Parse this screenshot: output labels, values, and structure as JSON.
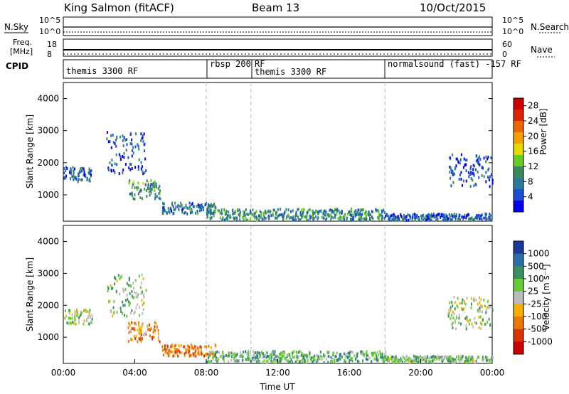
{
  "header": {
    "station": "King Salmon (fitACF)",
    "beam": "Beam 13",
    "date": "10/Oct/2015"
  },
  "noise_panel": {
    "left_label": "N.Sky",
    "right_label": "N.Search",
    "left_ticks": [
      "10^5",
      "10^0"
    ],
    "right_ticks": [
      "10^5",
      "10^0"
    ]
  },
  "freq_panel": {
    "left_label_1": "Freq.",
    "left_label_2": "[MHz]",
    "right_label": "Nave",
    "left_ticks": [
      "18",
      "8"
    ],
    "right_ticks": [
      "60",
      "0"
    ]
  },
  "cpid_panel": {
    "label": "CPID",
    "segments": [
      {
        "text": "themis 3300 RF",
        "start_hour": 0.0
      },
      {
        "text": "rbsp 200",
        "start_hour": 8.0
      },
      {
        "text": "RF",
        "start_hour": 10.5
      },
      {
        "text": "themis 3300 RF",
        "start_hour": 10.5
      },
      {
        "text": "normalsound (fast) -157 RF",
        "start_hour": 18.0
      }
    ]
  },
  "chart_data": [
    {
      "type": "heatmap",
      "title": "Power",
      "ylabel": "Slant Range [km]",
      "xlabel": "",
      "xlim": [
        0,
        24
      ],
      "ylim": [
        180,
        4500
      ],
      "yticks": [
        "1000",
        "2000",
        "3000",
        "4000"
      ],
      "colorbar": {
        "label": "Power [dB]",
        "ticks": [
          "4",
          "8",
          "12",
          "16",
          "20",
          "24",
          "28"
        ],
        "range": [
          0,
          30
        ],
        "colors": [
          "#0000ee",
          "#1a50d0",
          "#2a7a9a",
          "#3c8a5a",
          "#66cc22",
          "#e8d800",
          "#f3a000",
          "#ee6600",
          "#dd2200",
          "#cc0000"
        ]
      },
      "clusters": [
        {
          "hours": [
            0.0,
            1.6
          ],
          "range_km": [
            1450,
            1900
          ],
          "level": 0.2
        },
        {
          "hours": [
            2.4,
            4.6
          ],
          "range_km": [
            1700,
            3000
          ],
          "level": 0.15
        },
        {
          "hours": [
            3.6,
            5.4
          ],
          "range_km": [
            900,
            1500
          ],
          "level": 0.35
        },
        {
          "hours": [
            5.5,
            8.5
          ],
          "range_km": [
            450,
            800
          ],
          "level": 0.25
        },
        {
          "hours": [
            8.0,
            18.0
          ],
          "range_km": [
            250,
            600
          ],
          "level": 0.3
        },
        {
          "hours": [
            21.5,
            24.0
          ],
          "range_km": [
            1300,
            2300
          ],
          "level": 0.15
        },
        {
          "hours": [
            18.0,
            24.0
          ],
          "range_km": [
            250,
            450
          ],
          "level": 0.2
        }
      ]
    },
    {
      "type": "heatmap",
      "title": "Velocity",
      "ylabel": "Slant Range [km]",
      "xlabel": "Time UT",
      "xlim": [
        0,
        24
      ],
      "ylim": [
        180,
        4500
      ],
      "yticks": [
        "1000",
        "2000",
        "3000",
        "4000"
      ],
      "xticks": [
        "00:00",
        "04:00",
        "08:00",
        "12:00",
        "16:00",
        "20:00",
        "00:00"
      ],
      "colorbar": {
        "label": "Velocity [m s⁻¹]",
        "ticks": [
          "1000",
          "500",
          "100",
          "25",
          "-25",
          "-100",
          "-500",
          "-1000"
        ],
        "colors": [
          "#1a3a99",
          "#2a6faa",
          "#3a8f5f",
          "#66cc33",
          "#bbbbbb",
          "#f3b000",
          "#ee7700",
          "#dd3300",
          "#cc0000"
        ]
      },
      "clusters": [
        {
          "hours": [
            0.0,
            1.6
          ],
          "range_km": [
            1450,
            1900
          ],
          "level": 0.45
        },
        {
          "hours": [
            2.4,
            4.6
          ],
          "range_km": [
            1700,
            3000
          ],
          "level": 0.4
        },
        {
          "hours": [
            3.6,
            5.4
          ],
          "range_km": [
            900,
            1500
          ],
          "level": 0.7
        },
        {
          "hours": [
            5.5,
            8.5
          ],
          "range_km": [
            450,
            800
          ],
          "level": 0.7
        },
        {
          "hours": [
            8.0,
            18.0
          ],
          "range_km": [
            250,
            600
          ],
          "level": 0.35
        },
        {
          "hours": [
            21.5,
            24.0
          ],
          "range_km": [
            1300,
            2300
          ],
          "level": 0.45
        },
        {
          "hours": [
            18.0,
            24.0
          ],
          "range_km": [
            250,
            450
          ],
          "level": 0.4
        }
      ]
    }
  ],
  "dashed_hours": [
    8.0,
    10.5,
    18.0
  ]
}
